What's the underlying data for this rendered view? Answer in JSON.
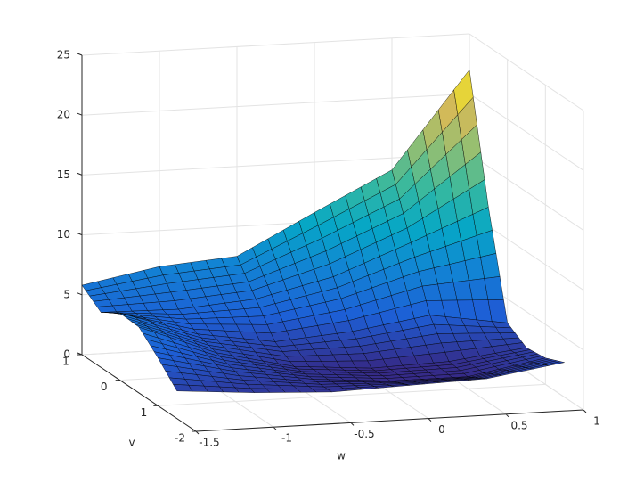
{
  "chart_data": {
    "type": "surface",
    "xlabel": "w",
    "ylabel": "v",
    "x": [
      -1.5,
      -1,
      -0.5,
      0,
      0.5,
      1
    ],
    "y": [
      1,
      0.5,
      0,
      -0.5,
      -1,
      -1.5
    ],
    "values": [
      [
        5.8,
        7,
        7.5,
        10.8,
        14,
        22
      ],
      [
        4.6,
        4.5,
        5,
        6.5,
        9,
        11.6
      ],
      [
        5.6,
        3.5,
        2.5,
        3,
        4,
        3
      ],
      [
        5.5,
        3,
        1.5,
        1,
        1.2,
        2
      ],
      [
        4,
        2.5,
        1.5,
        1,
        1,
        2.2
      ],
      [
        2.3,
        1.8,
        1.5,
        1.7,
        1.9,
        2.9
      ]
    ],
    "xlim": [
      -1.5,
      1
    ],
    "ylim": [
      -2,
      1
    ],
    "zlim": [
      0,
      25
    ],
    "xticks": [
      -1.5,
      -1,
      -0.5,
      0,
      0.5,
      1
    ],
    "yticks": [
      -2,
      -1,
      0,
      1
    ],
    "zticks": [
      0,
      5,
      10,
      15,
      20,
      25
    ],
    "grid": true,
    "edge_color": "#000000",
    "colormap": [
      "#352a87",
      "#1d5fd6",
      "#1283d4",
      "#06a7c6",
      "#38b99e",
      "#92bf73",
      "#d9ba56",
      "#f9fb0e"
    ]
  }
}
